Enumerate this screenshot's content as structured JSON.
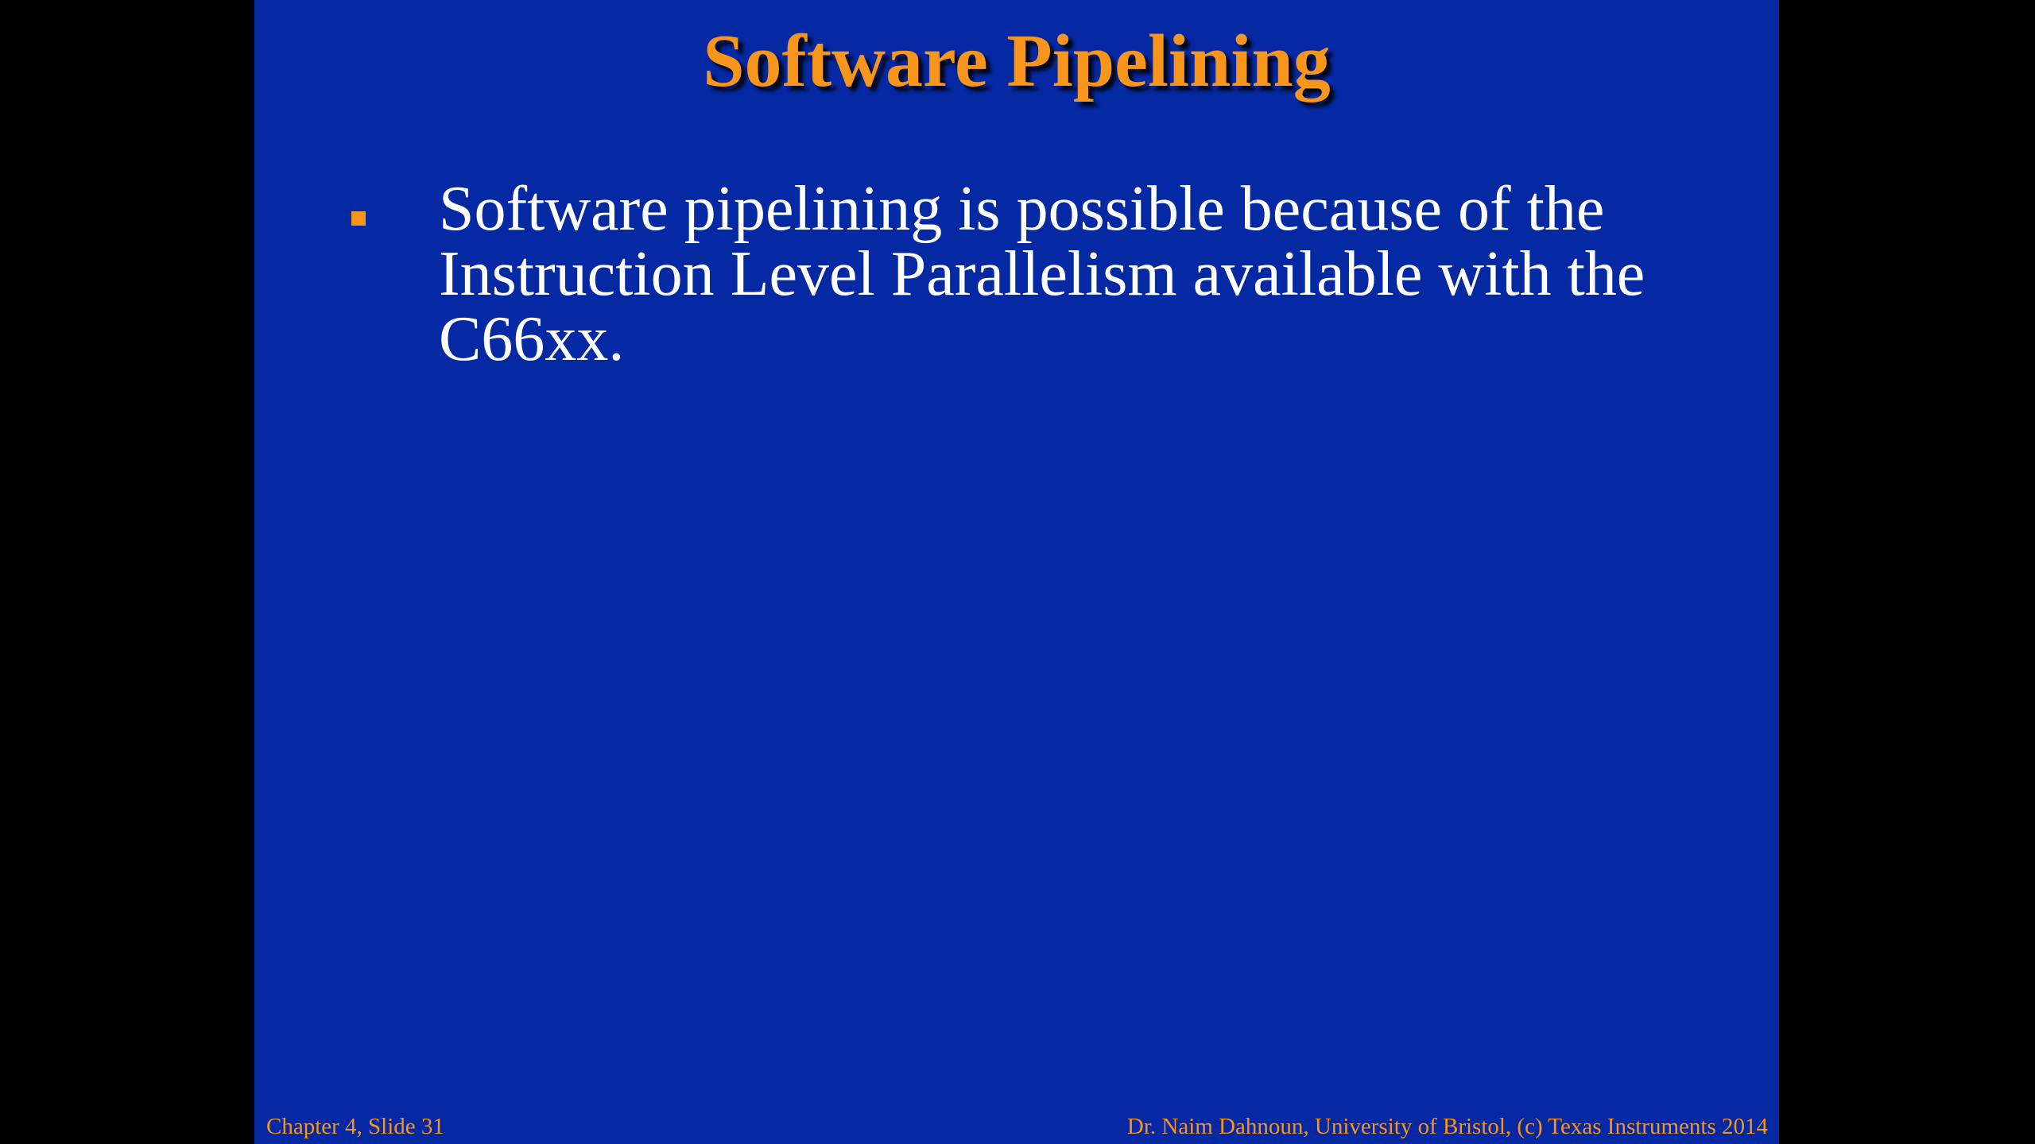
{
  "colors": {
    "slide_background": "#0429a3",
    "letterbox": "#000000",
    "title": "#f7951d",
    "body_text": "#ffffff",
    "bullet": "#f7951d",
    "footer": "#f7951d"
  },
  "slide": {
    "title": "Software Pipelining",
    "bullets": [
      {
        "marker_icon": "square-bullet-icon",
        "text": "Software pipelining is possible because of the Instruction Level Parallelism available with the C66xx."
      }
    ],
    "footer": {
      "left": "Chapter 4, Slide 31",
      "right": "Dr. Naim Dahnoun, University of Bristol,  (c) Texas Instruments 2014"
    }
  }
}
